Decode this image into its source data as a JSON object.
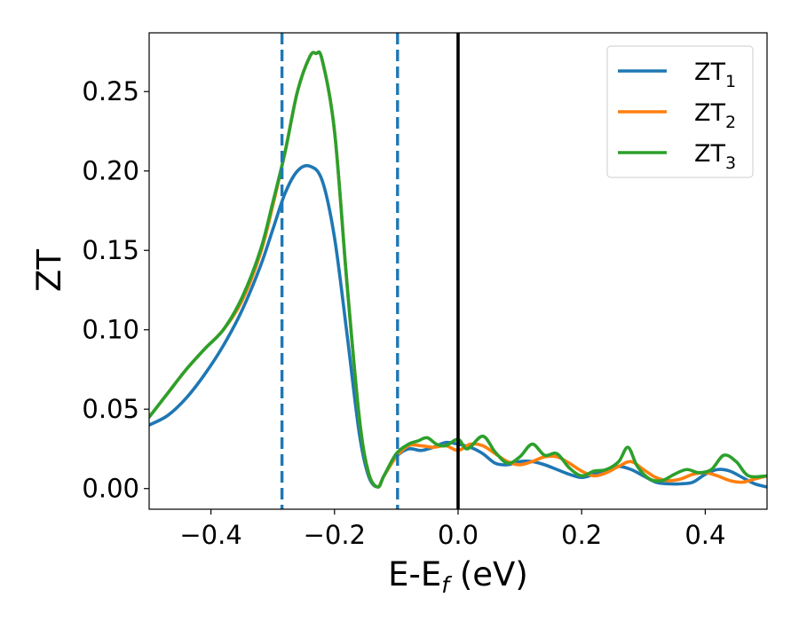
{
  "chart_data": {
    "type": "line",
    "xlabel": {
      "main": "E-E",
      "sub": "f",
      "unit": " (eV)"
    },
    "ylabel": "ZT",
    "xlim": [
      -0.5,
      0.5
    ],
    "ylim": [
      -0.013,
      0.287
    ],
    "xticks": [
      -0.4,
      -0.2,
      0.0,
      0.2,
      0.4
    ],
    "xtick_labels": [
      "−0.4",
      "−0.2",
      "0.0",
      "0.2",
      "0.4"
    ],
    "yticks": [
      0.0,
      0.05,
      0.1,
      0.15,
      0.2,
      0.25
    ],
    "ytick_labels": [
      "0.00",
      "0.05",
      "0.10",
      "0.15",
      "0.20",
      "0.25"
    ],
    "grid": false,
    "legend_position": "top-right",
    "vlines": [
      {
        "x": -0.285,
        "style": "dashed",
        "color": "#1f77b4"
      },
      {
        "x": -0.098,
        "style": "dashed",
        "color": "#1f77b4"
      },
      {
        "x": 0.0,
        "style": "solid",
        "color": "#000000"
      }
    ],
    "series": [
      {
        "name": "ZT",
        "sub": "1",
        "color": "#1f77b4",
        "x": [
          -0.5,
          -0.47,
          -0.44,
          -0.41,
          -0.38,
          -0.35,
          -0.32,
          -0.3,
          -0.28,
          -0.26,
          -0.24,
          -0.22,
          -0.2,
          -0.18,
          -0.16,
          -0.145,
          -0.13,
          -0.12,
          -0.1,
          -0.08,
          -0.06,
          -0.04,
          -0.02,
          0.0,
          0.02,
          0.04,
          0.06,
          0.08,
          0.1,
          0.12,
          0.14,
          0.16,
          0.18,
          0.2,
          0.22,
          0.24,
          0.26,
          0.28,
          0.3,
          0.32,
          0.34,
          0.36,
          0.38,
          0.4,
          0.42,
          0.44,
          0.46,
          0.48,
          0.5
        ],
        "y": [
          0.04,
          0.046,
          0.057,
          0.072,
          0.09,
          0.112,
          0.14,
          0.163,
          0.186,
          0.2,
          0.203,
          0.194,
          0.158,
          0.098,
          0.035,
          0.008,
          0.001,
          0.008,
          0.02,
          0.025,
          0.024,
          0.026,
          0.029,
          0.028,
          0.026,
          0.022,
          0.016,
          0.015,
          0.017,
          0.017,
          0.015,
          0.012,
          0.009,
          0.007,
          0.009,
          0.012,
          0.014,
          0.012,
          0.008,
          0.004,
          0.003,
          0.003,
          0.004,
          0.009,
          0.012,
          0.011,
          0.007,
          0.003,
          0.001
        ]
      },
      {
        "name": "ZT",
        "sub": "2",
        "color": "#ff7f0e",
        "x": [
          -0.5,
          -0.47,
          -0.44,
          -0.41,
          -0.38,
          -0.35,
          -0.32,
          -0.3,
          -0.28,
          -0.26,
          -0.24,
          -0.23,
          -0.22,
          -0.2,
          -0.18,
          -0.16,
          -0.145,
          -0.13,
          -0.12,
          -0.1,
          -0.08,
          -0.06,
          -0.04,
          -0.02,
          0.0,
          0.02,
          0.04,
          0.06,
          0.08,
          0.1,
          0.12,
          0.14,
          0.16,
          0.18,
          0.2,
          0.22,
          0.24,
          0.26,
          0.28,
          0.3,
          0.32,
          0.34,
          0.36,
          0.38,
          0.4,
          0.42,
          0.44,
          0.46,
          0.48,
          0.5
        ],
        "y": [
          0.045,
          0.06,
          0.075,
          0.088,
          0.1,
          0.118,
          0.148,
          0.178,
          0.212,
          0.25,
          0.272,
          0.274,
          0.27,
          0.225,
          0.13,
          0.045,
          0.01,
          0.001,
          0.008,
          0.02,
          0.027,
          0.027,
          0.026,
          0.027,
          0.024,
          0.028,
          0.027,
          0.022,
          0.017,
          0.015,
          0.017,
          0.02,
          0.02,
          0.016,
          0.011,
          0.008,
          0.01,
          0.014,
          0.017,
          0.012,
          0.007,
          0.005,
          0.006,
          0.009,
          0.01,
          0.008,
          0.005,
          0.004,
          0.006,
          0.008
        ]
      },
      {
        "name": "ZT",
        "sub": "3",
        "color": "#2ca02c",
        "x": [
          -0.5,
          -0.47,
          -0.44,
          -0.41,
          -0.38,
          -0.35,
          -0.32,
          -0.3,
          -0.28,
          -0.26,
          -0.24,
          -0.23,
          -0.22,
          -0.2,
          -0.18,
          -0.16,
          -0.145,
          -0.13,
          -0.12,
          -0.1,
          -0.08,
          -0.065,
          -0.05,
          -0.035,
          -0.02,
          0.0,
          0.015,
          0.04,
          0.06,
          0.08,
          0.1,
          0.12,
          0.14,
          0.16,
          0.18,
          0.2,
          0.22,
          0.24,
          0.26,
          0.275,
          0.29,
          0.31,
          0.33,
          0.35,
          0.37,
          0.39,
          0.41,
          0.43,
          0.45,
          0.47,
          0.5
        ],
        "y": [
          0.045,
          0.06,
          0.075,
          0.088,
          0.1,
          0.12,
          0.15,
          0.18,
          0.212,
          0.25,
          0.272,
          0.274,
          0.27,
          0.225,
          0.13,
          0.045,
          0.01,
          0.001,
          0.008,
          0.022,
          0.028,
          0.03,
          0.032,
          0.028,
          0.027,
          0.031,
          0.025,
          0.033,
          0.023,
          0.016,
          0.02,
          0.028,
          0.021,
          0.022,
          0.013,
          0.008,
          0.011,
          0.012,
          0.017,
          0.026,
          0.014,
          0.006,
          0.005,
          0.009,
          0.012,
          0.01,
          0.012,
          0.021,
          0.017,
          0.008,
          0.008
        ]
      }
    ]
  }
}
